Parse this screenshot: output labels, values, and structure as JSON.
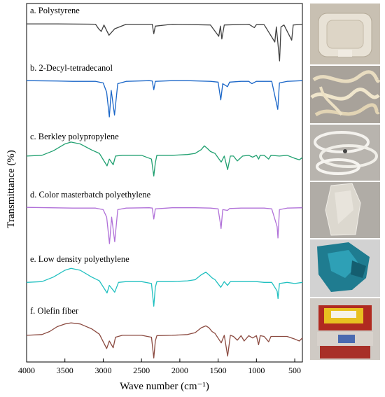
{
  "chart_data": {
    "type": "line",
    "xlabel": "Wave number (cm⁻¹)",
    "ylabel": "Transmittance (%)",
    "xlim": [
      4000,
      400
    ],
    "x_ticks": [
      4000,
      3500,
      3000,
      2500,
      2000,
      1500,
      1000,
      500
    ],
    "series": [
      {
        "name": "a. Polystyrene",
        "color": "#404040",
        "points": [
          [
            4000,
            0.02
          ],
          [
            3600,
            0.02
          ],
          [
            3100,
            0.03
          ],
          [
            3060,
            0.15
          ],
          [
            3025,
            0.22
          ],
          [
            2990,
            0.05
          ],
          [
            2925,
            0.32
          ],
          [
            2850,
            0.15
          ],
          [
            2700,
            0.03
          ],
          [
            2360,
            0.03
          ],
          [
            2340,
            0.28
          ],
          [
            2320,
            0.08
          ],
          [
            2100,
            0.03
          ],
          [
            1600,
            0.05
          ],
          [
            1492,
            0.35
          ],
          [
            1470,
            0.08
          ],
          [
            1452,
            0.42
          ],
          [
            1420,
            0.05
          ],
          [
            1100,
            0.03
          ],
          [
            1028,
            0.12
          ],
          [
            1000,
            0.04
          ],
          [
            900,
            0.04
          ],
          [
            760,
            0.5
          ],
          [
            740,
            0.1
          ],
          [
            698,
            1.0
          ],
          [
            680,
            0.1
          ],
          [
            640,
            0.05
          ],
          [
            540,
            0.45
          ],
          [
            520,
            0.05
          ],
          [
            400,
            0.03
          ]
        ]
      },
      {
        "name": "b. 2-Decyl-tetradecanol",
        "color": "#1a66c8",
        "points": [
          [
            4000,
            0.04
          ],
          [
            3600,
            0.05
          ],
          [
            3400,
            0.06
          ],
          [
            3100,
            0.06
          ],
          [
            3000,
            0.1
          ],
          [
            2955,
            0.35
          ],
          [
            2920,
            1.0
          ],
          [
            2895,
            0.3
          ],
          [
            2852,
            0.95
          ],
          [
            2810,
            0.12
          ],
          [
            2700,
            0.06
          ],
          [
            2400,
            0.04
          ],
          [
            2360,
            0.05
          ],
          [
            2340,
            0.28
          ],
          [
            2320,
            0.06
          ],
          [
            2100,
            0.04
          ],
          [
            1900,
            0.04
          ],
          [
            1600,
            0.06
          ],
          [
            1500,
            0.08
          ],
          [
            1465,
            0.55
          ],
          [
            1440,
            0.12
          ],
          [
            1378,
            0.2
          ],
          [
            1350,
            0.08
          ],
          [
            1200,
            0.06
          ],
          [
            1100,
            0.06
          ],
          [
            1060,
            0.12
          ],
          [
            1000,
            0.06
          ],
          [
            900,
            0.06
          ],
          [
            800,
            0.06
          ],
          [
            722,
            0.8
          ],
          [
            700,
            0.1
          ],
          [
            600,
            0.06
          ],
          [
            400,
            0.04
          ]
        ]
      },
      {
        "name": "c. Berkley polypropylene",
        "color": "#20a070",
        "points": [
          [
            4000,
            0.22
          ],
          [
            3800,
            0.2
          ],
          [
            3650,
            0.08
          ],
          [
            3500,
            -0.1
          ],
          [
            3420,
            -0.15
          ],
          [
            3300,
            -0.1
          ],
          [
            3150,
            0.06
          ],
          [
            3050,
            0.15
          ],
          [
            2950,
            0.48
          ],
          [
            2920,
            0.3
          ],
          [
            2870,
            0.45
          ],
          [
            2840,
            0.22
          ],
          [
            2750,
            0.2
          ],
          [
            2500,
            0.2
          ],
          [
            2370,
            0.3
          ],
          [
            2340,
            0.75
          ],
          [
            2320,
            0.4
          ],
          [
            2300,
            0.2
          ],
          [
            2100,
            0.2
          ],
          [
            1900,
            0.18
          ],
          [
            1800,
            0.15
          ],
          [
            1720,
            0.05
          ],
          [
            1680,
            -0.05
          ],
          [
            1640,
            0.02
          ],
          [
            1600,
            0.1
          ],
          [
            1540,
            0.15
          ],
          [
            1460,
            0.38
          ],
          [
            1420,
            0.22
          ],
          [
            1376,
            0.58
          ],
          [
            1340,
            0.22
          ],
          [
            1300,
            0.22
          ],
          [
            1250,
            0.35
          ],
          [
            1180,
            0.22
          ],
          [
            1100,
            0.2
          ],
          [
            1050,
            0.25
          ],
          [
            1000,
            0.2
          ],
          [
            972,
            0.3
          ],
          [
            950,
            0.2
          ],
          [
            900,
            0.2
          ],
          [
            840,
            0.3
          ],
          [
            810,
            0.2
          ],
          [
            700,
            0.22
          ],
          [
            600,
            0.2
          ],
          [
            500,
            0.28
          ],
          [
            440,
            0.32
          ],
          [
            400,
            0.26
          ]
        ]
      },
      {
        "name": "d. Color masterbatch polyethylene",
        "color": "#b070d8",
        "points": [
          [
            4000,
            0.04
          ],
          [
            3700,
            0.05
          ],
          [
            3400,
            0.06
          ],
          [
            3100,
            0.06
          ],
          [
            3000,
            0.1
          ],
          [
            2955,
            0.3
          ],
          [
            2918,
            1.0
          ],
          [
            2890,
            0.3
          ],
          [
            2850,
            0.95
          ],
          [
            2810,
            0.1
          ],
          [
            2700,
            0.06
          ],
          [
            2400,
            0.05
          ],
          [
            2360,
            0.06
          ],
          [
            2340,
            0.35
          ],
          [
            2320,
            0.08
          ],
          [
            2100,
            0.05
          ],
          [
            1800,
            0.05
          ],
          [
            1600,
            0.06
          ],
          [
            1500,
            0.08
          ],
          [
            1472,
            0.45
          ],
          [
            1462,
            0.6
          ],
          [
            1440,
            0.1
          ],
          [
            1378,
            0.12
          ],
          [
            1350,
            0.07
          ],
          [
            1200,
            0.06
          ],
          [
            1000,
            0.06
          ],
          [
            900,
            0.06
          ],
          [
            800,
            0.08
          ],
          [
            730,
            0.55
          ],
          [
            719,
            0.85
          ],
          [
            700,
            0.1
          ],
          [
            600,
            0.06
          ],
          [
            400,
            0.05
          ]
        ]
      },
      {
        "name": "e. Low density polyethylene",
        "color": "#20c0c0",
        "points": [
          [
            4000,
            0.32
          ],
          [
            3800,
            0.3
          ],
          [
            3650,
            0.18
          ],
          [
            3500,
            0.0
          ],
          [
            3420,
            -0.05
          ],
          [
            3300,
            0.0
          ],
          [
            3150,
            0.18
          ],
          [
            3050,
            0.28
          ],
          [
            2950,
            0.6
          ],
          [
            2920,
            0.4
          ],
          [
            2850,
            0.58
          ],
          [
            2800,
            0.32
          ],
          [
            2700,
            0.3
          ],
          [
            2500,
            0.3
          ],
          [
            2370,
            0.35
          ],
          [
            2340,
            0.95
          ],
          [
            2320,
            0.45
          ],
          [
            2300,
            0.3
          ],
          [
            2100,
            0.3
          ],
          [
            1900,
            0.28
          ],
          [
            1800,
            0.25
          ],
          [
            1720,
            0.12
          ],
          [
            1660,
            0.05
          ],
          [
            1620,
            0.12
          ],
          [
            1580,
            0.2
          ],
          [
            1540,
            0.25
          ],
          [
            1465,
            0.45
          ],
          [
            1420,
            0.3
          ],
          [
            1378,
            0.4
          ],
          [
            1340,
            0.3
          ],
          [
            1300,
            0.3
          ],
          [
            1200,
            0.3
          ],
          [
            1100,
            0.3
          ],
          [
            1000,
            0.3
          ],
          [
            900,
            0.32
          ],
          [
            800,
            0.32
          ],
          [
            730,
            0.55
          ],
          [
            718,
            0.75
          ],
          [
            700,
            0.35
          ],
          [
            600,
            0.32
          ],
          [
            500,
            0.35
          ],
          [
            400,
            0.32
          ]
        ]
      },
      {
        "name": "f. Olefin fiber",
        "color": "#8b4a40",
        "points": [
          [
            4000,
            0.35
          ],
          [
            3800,
            0.33
          ],
          [
            3700,
            0.25
          ],
          [
            3600,
            0.12
          ],
          [
            3500,
            0.05
          ],
          [
            3420,
            0.02
          ],
          [
            3300,
            0.05
          ],
          [
            3150,
            0.18
          ],
          [
            3050,
            0.32
          ],
          [
            2955,
            0.7
          ],
          [
            2920,
            0.5
          ],
          [
            2870,
            0.68
          ],
          [
            2840,
            0.4
          ],
          [
            2750,
            0.35
          ],
          [
            2500,
            0.35
          ],
          [
            2370,
            0.4
          ],
          [
            2340,
            0.95
          ],
          [
            2320,
            0.5
          ],
          [
            2300,
            0.36
          ],
          [
            2100,
            0.35
          ],
          [
            1900,
            0.33
          ],
          [
            1800,
            0.28
          ],
          [
            1720,
            0.15
          ],
          [
            1660,
            0.1
          ],
          [
            1620,
            0.15
          ],
          [
            1580,
            0.25
          ],
          [
            1540,
            0.3
          ],
          [
            1460,
            0.55
          ],
          [
            1420,
            0.35
          ],
          [
            1376,
            0.9
          ],
          [
            1340,
            0.35
          ],
          [
            1300,
            0.38
          ],
          [
            1250,
            0.48
          ],
          [
            1200,
            0.36
          ],
          [
            1160,
            0.5
          ],
          [
            1100,
            0.36
          ],
          [
            1050,
            0.42
          ],
          [
            1000,
            0.36
          ],
          [
            972,
            0.6
          ],
          [
            950,
            0.36
          ],
          [
            900,
            0.38
          ],
          [
            840,
            0.52
          ],
          [
            810,
            0.38
          ],
          [
            700,
            0.38
          ],
          [
            600,
            0.38
          ],
          [
            500,
            0.45
          ],
          [
            440,
            0.5
          ],
          [
            400,
            0.42
          ]
        ]
      }
    ]
  },
  "photos": [
    {
      "subject": "polystyrene-foam-tray",
      "bg": "#c8c0b2"
    },
    {
      "subject": "translucent-tangled-strands",
      "bg": "#a8a29a"
    },
    {
      "subject": "white-tangled-strap",
      "bg": "#b8b4ae"
    },
    {
      "subject": "clear-plastic-film",
      "bg": "#b0aca6"
    },
    {
      "subject": "blue-plastic-bag",
      "bg": "#d2d2d2"
    },
    {
      "subject": "colorful-snack-wrapper",
      "bg": "#cfcac4"
    }
  ]
}
